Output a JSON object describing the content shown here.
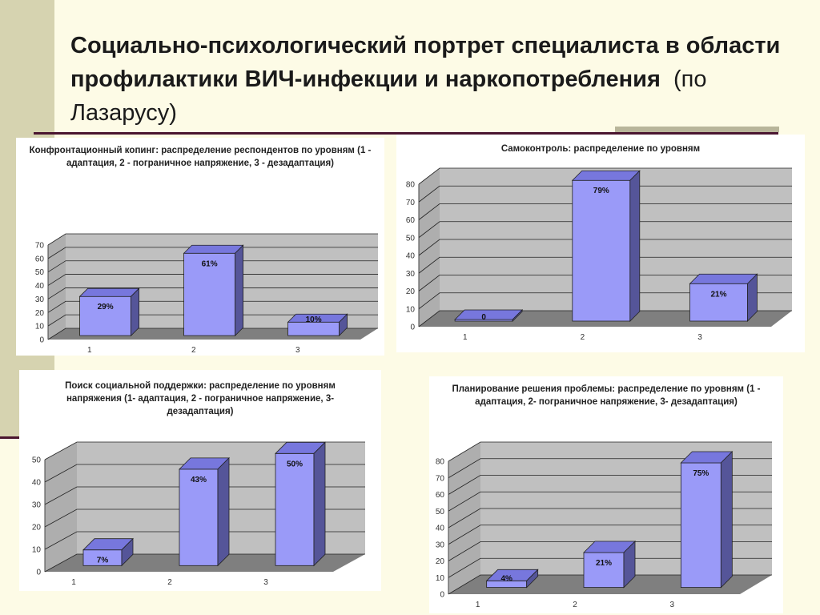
{
  "slide": {
    "title_main": "Социально-психологический портрет специалиста в области профилактики ВИЧ-инфекции и наркопотребления",
    "title_sub": "(по Лазарусу)"
  },
  "colors": {
    "bar_front": "#9a9af8",
    "bar_top": "#7777dd",
    "bar_side": "#555599",
    "wall": "#c0c0c0",
    "floor": "#7f7f7f"
  },
  "chart_data": [
    {
      "type": "bar",
      "title": "Конфронтационный копинг: распределение респондентов по уровням (1 - адаптация, 2 - пограничное напряжение, 3 - дезадаптация)",
      "categories": [
        "1",
        "2",
        "3"
      ],
      "values": [
        29,
        61,
        10
      ],
      "data_labels": [
        "29%",
        "61%",
        "10%"
      ],
      "ylim": [
        0,
        70
      ],
      "yticks": [
        0,
        10,
        20,
        30,
        40,
        50,
        60,
        70
      ],
      "grid": true
    },
    {
      "type": "bar",
      "title": "Самоконтроль: распределение по уровням",
      "categories": [
        "1",
        "2",
        "3"
      ],
      "values": [
        0,
        79,
        21
      ],
      "data_labels": [
        "0",
        "79%",
        "21%"
      ],
      "ylim": [
        0,
        80
      ],
      "yticks": [
        0,
        10,
        20,
        30,
        40,
        50,
        60,
        70,
        80
      ],
      "grid": true
    },
    {
      "type": "bar",
      "title": "Поиск социальной поддержки: распределение по уровням напряжения (1- адаптация, 2 - пограничное напряжение, 3- дезадаптация)",
      "categories": [
        "1",
        "2",
        "3"
      ],
      "values": [
        7,
        43,
        50
      ],
      "data_labels": [
        "7%",
        "43%",
        "50%"
      ],
      "ylim": [
        0,
        50
      ],
      "yticks": [
        0,
        10,
        20,
        30,
        40,
        50
      ],
      "grid": true
    },
    {
      "type": "bar",
      "title": "Планирование решения проблемы: распределение по уровням (1 - адаптация, 2- пограничное напряжение, 3- дезадаптация)",
      "categories": [
        "1",
        "2",
        "3"
      ],
      "values": [
        4,
        21,
        75
      ],
      "data_labels": [
        "4%",
        "21%",
        "75%"
      ],
      "ylim": [
        0,
        80
      ],
      "yticks": [
        0,
        10,
        20,
        30,
        40,
        50,
        60,
        70,
        80
      ],
      "grid": true
    }
  ]
}
